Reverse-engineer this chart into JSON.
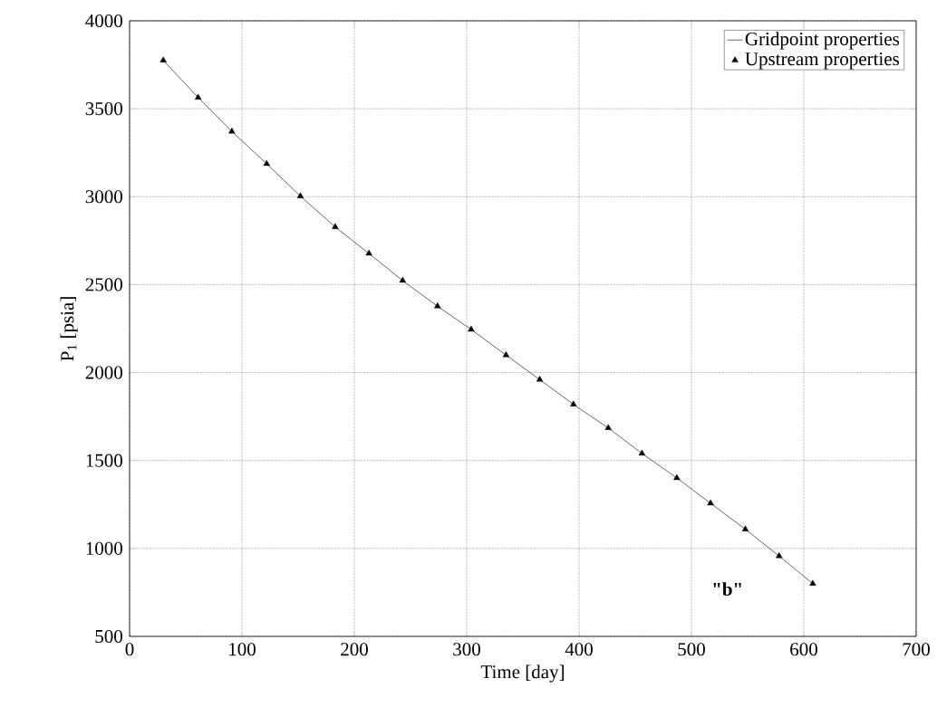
{
  "chart_data": {
    "type": "scatter",
    "xlabel": "Time [day]",
    "ylabel": "P$_{1}$ [psia]",
    "x": [
      30,
      61,
      91,
      122,
      152,
      183,
      213,
      243,
      274,
      304,
      335,
      365,
      395,
      426,
      456,
      487,
      517,
      548,
      578,
      608
    ],
    "series": [
      {
        "name": "Gridpoint properties",
        "type": "line",
        "color": "#000000",
        "marker": "none",
        "line_style": "solid",
        "values": [
          3775,
          3564,
          3371,
          3187,
          3003,
          2828,
          2677,
          2523,
          2377,
          2245,
          2099,
          1960,
          1819,
          1685,
          1540,
          1401,
          1257,
          1109,
          957,
          800
        ]
      },
      {
        "name": "Upstream properties",
        "color": "#000000",
        "marker": "triangle",
        "values": [
          3775,
          3564,
          3371,
          3187,
          3003,
          2828,
          2677,
          2523,
          2377,
          2245,
          2099,
          1960,
          1819,
          1685,
          1540,
          1401,
          1257,
          1109,
          957,
          800
        ]
      }
    ],
    "xlim": [
      0,
      700
    ],
    "xticks": [
      0,
      100,
      200,
      300,
      400,
      500,
      600,
      700
    ],
    "ylim": [
      500,
      4000
    ],
    "yticks": [
      500,
      1000,
      1500,
      2000,
      2500,
      3000,
      3500,
      4000
    ],
    "grid": true,
    "legend": "top right",
    "annotations": [
      "**\"b\"**"
    ]
  }
}
